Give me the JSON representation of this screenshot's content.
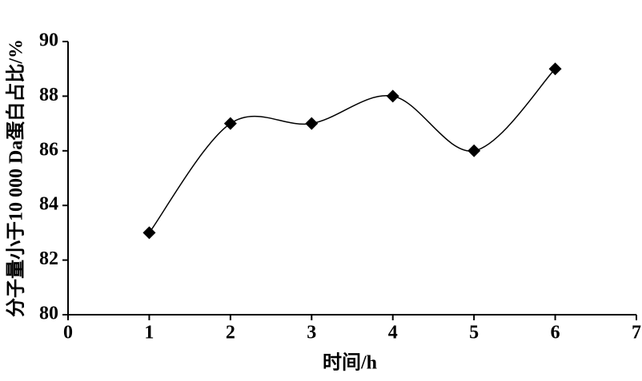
{
  "chart_data": {
    "type": "line",
    "x_label": "时间/h",
    "y_label": "分子量小于10 000 Da蛋白占比/%",
    "x": [
      1,
      2,
      3,
      4,
      5,
      6
    ],
    "series": [
      {
        "color": "#000000",
        "values": [
          83,
          87,
          87,
          88,
          86,
          89
        ]
      }
    ],
    "smooth": true,
    "marker": "diamond",
    "xlim": [
      0,
      7
    ],
    "xticks": [
      0,
      1,
      2,
      3,
      4,
      5,
      6,
      7
    ],
    "ylim": [
      80,
      90
    ],
    "yticks": [
      80,
      82,
      84,
      86,
      88,
      90
    ],
    "grid": false
  }
}
